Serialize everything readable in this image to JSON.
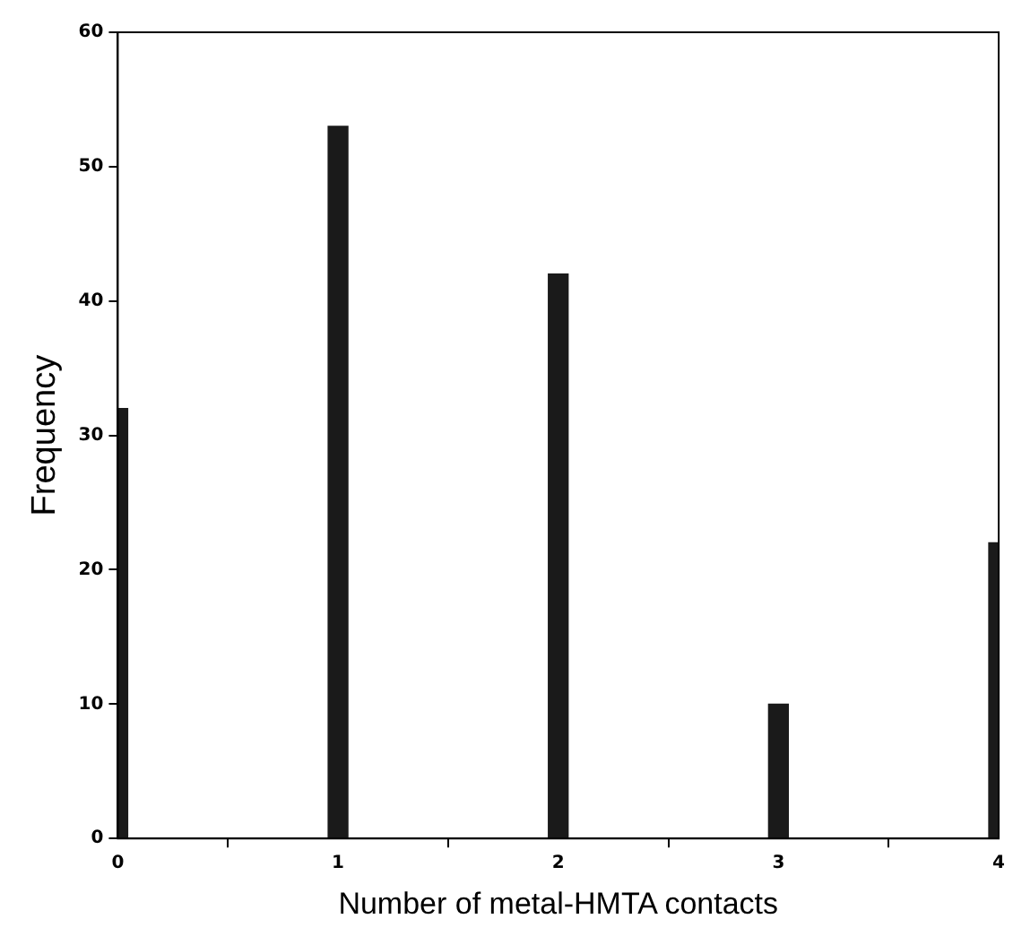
{
  "chart_data": {
    "type": "bar",
    "xlabel": "Number of metal-HMTA contacts",
    "ylabel": "Frequency",
    "x": [
      0,
      1,
      2,
      3,
      4
    ],
    "series": [
      {
        "color": "#1a1a1a",
        "values": [
          32,
          53,
          42,
          10,
          22
        ]
      }
    ],
    "xlim": [
      0,
      4
    ],
    "xticks": [
      0,
      1,
      2,
      3,
      4
    ],
    "ylim": [
      0,
      60
    ],
    "yticks": [
      0,
      10,
      20,
      30,
      40,
      50,
      60
    ],
    "grid": false,
    "legend": false
  }
}
